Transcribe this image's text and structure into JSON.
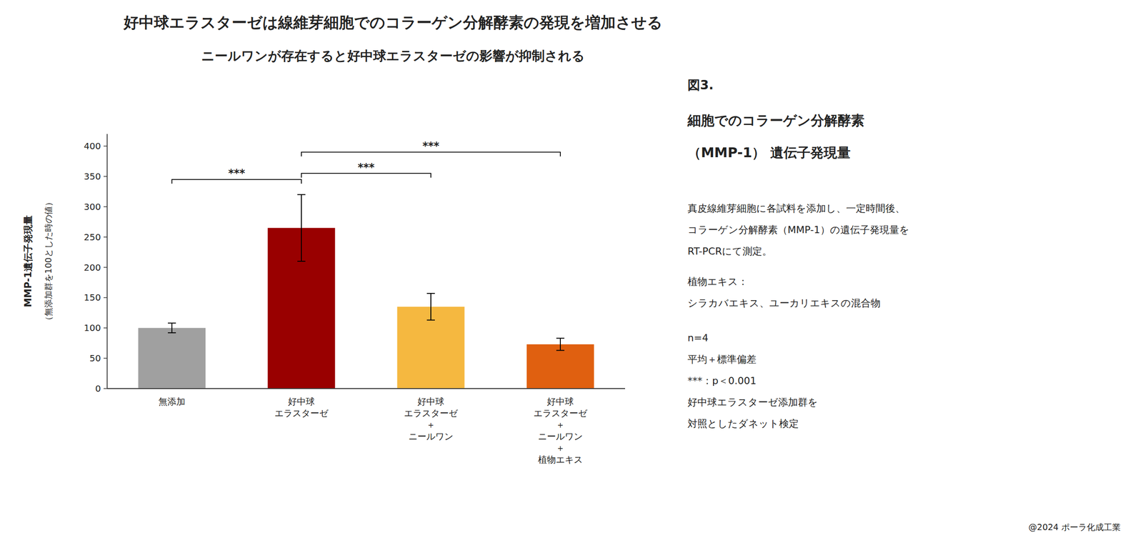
{
  "chart_data": {
    "type": "bar",
    "title": "好中球エラスターゼは線維芽細胞でのコラーゲン分解酵素の発現を増加させる",
    "subtitle": "ニールワンが存在すると好中球エラスターゼの影響が抑制される",
    "categories": [
      "無添加",
      "好中球\nエラスターゼ",
      "好中球\nエラスターゼ\n＋\nニールワン",
      "好中球\nエラスターゼ\n＋\nニールワン\n＋\n植物エキス"
    ],
    "values": [
      100,
      265,
      135,
      73
    ],
    "errors": [
      8,
      55,
      22,
      10
    ],
    "colors": [
      "#a0a0a0",
      "#990000",
      "#f5b840",
      "#e06010"
    ],
    "ylabel": "MMP-1遺伝子発現量",
    "ylabel_note": "（無添加群を100とした時の値）",
    "ylim": [
      0,
      420
    ],
    "yticks": [
      0,
      50,
      100,
      150,
      200,
      250,
      300,
      350,
      400
    ],
    "grid": false,
    "brackets": [
      {
        "x1": 0,
        "x2": 1,
        "y": 345,
        "label": "***"
      },
      {
        "x1": 1,
        "x2": 2,
        "y": 355,
        "label": "***"
      },
      {
        "x1": 1,
        "x2": 3,
        "y": 390,
        "label": "***"
      }
    ],
    "figure_label": "図3.",
    "figure_desc": [
      "細胞でのコラーゲン分解酵素",
      "（MMP-1） 遺伝子発現量"
    ],
    "figure_body": [
      "真皮線維芽細胞に各試料を添加し、一定時間後、",
      "コラーゲン分解酵素（MMP-1）の遺伝子発現量を",
      "RT-PCRにて測定。"
    ],
    "plant_label": [
      "植物エキス：",
      "シラカバエキス、ユーカリエキスの混合物"
    ],
    "stats": [
      "n=4",
      "平均＋標準偏差",
      "***：p＜0.001",
      "好中球エラスターゼ添加群を",
      "対照としたダネット検定"
    ],
    "copyright": "@2024 ポーラ化成工業"
  }
}
